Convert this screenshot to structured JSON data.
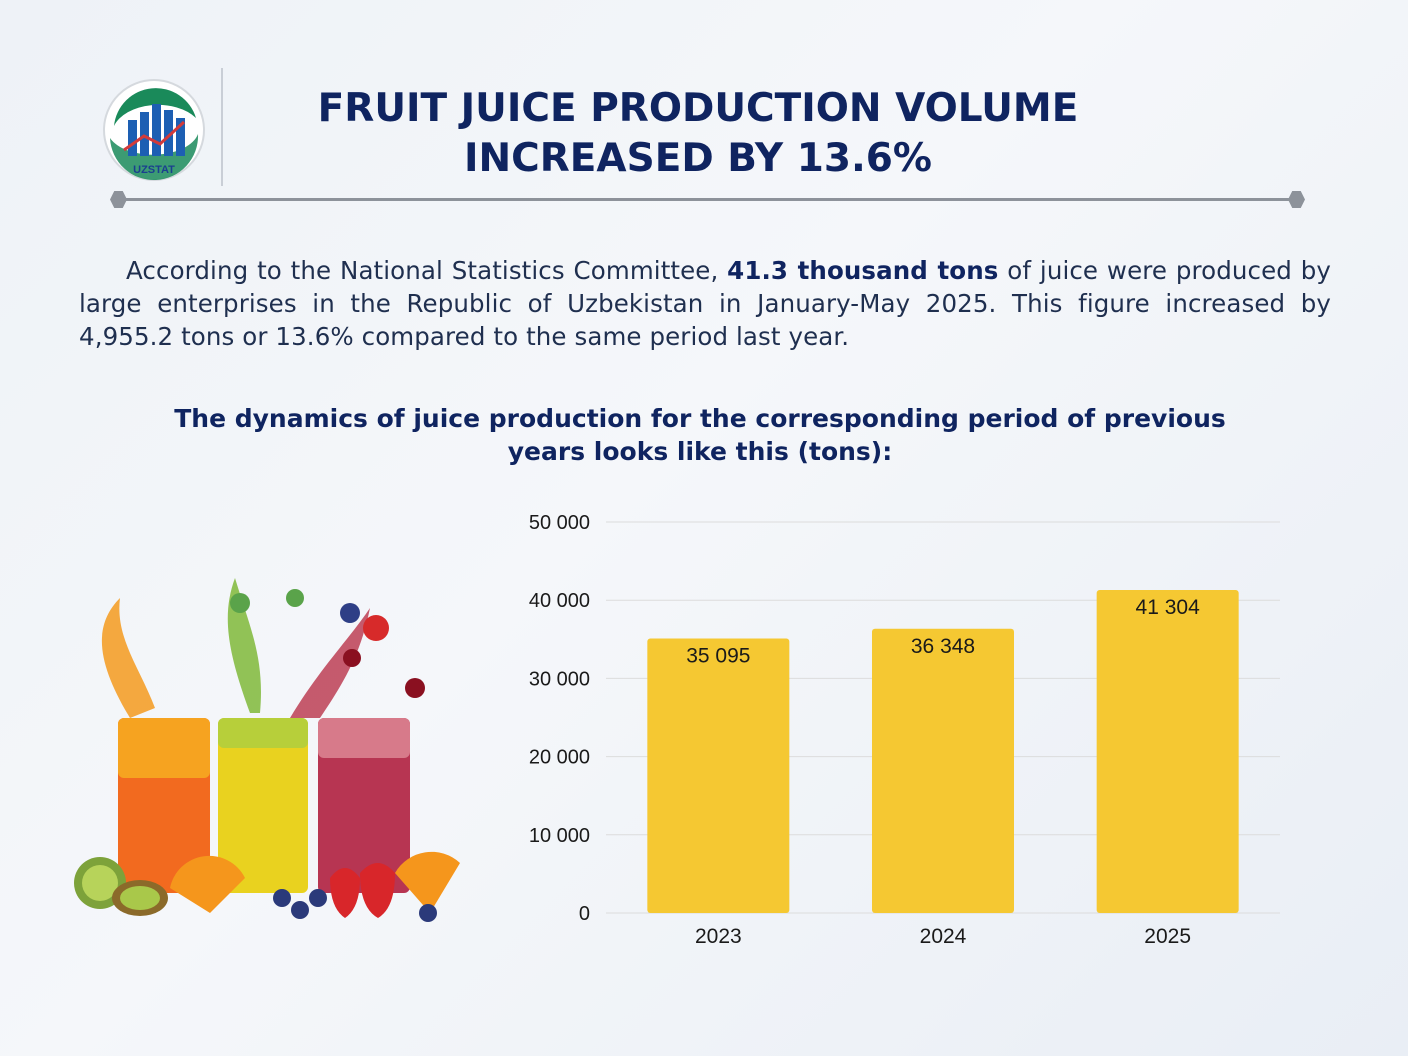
{
  "logo": {
    "text": "UZSTAT",
    "icon": "uzstat-logo-icon"
  },
  "header": {
    "title_line1": "FRUIT JUICE PRODUCTION VOLUME",
    "title_line2": "INCREASED BY 13.6%"
  },
  "intro": {
    "part1": "According to the National Statistics Committee, ",
    "bold": "41.3 thousand tons",
    "part2": " of juice were produced by large enterprises in the Republic of Uzbekistan in January-May 2025. This figure increased by 4,955.2 tons or 13.6% compared to the same period last year."
  },
  "subtitle": {
    "line1": "The dynamics of juice production for the corresponding period of previous",
    "line2": "years looks like this (tons):"
  },
  "illustration": {
    "icon": "juice-glasses-illustration"
  },
  "chart_data": {
    "type": "bar",
    "categories": [
      "2023",
      "2024",
      "2025"
    ],
    "values": [
      35095,
      36348,
      41304
    ],
    "value_labels": [
      "35 095",
      "36 348",
      "41 304"
    ],
    "yticks": [
      0,
      10000,
      20000,
      30000,
      40000,
      50000
    ],
    "ytick_labels": [
      "0",
      "10 000",
      "20 000",
      "30 000",
      "40 000",
      "50 000"
    ],
    "ylim": [
      0,
      50000
    ],
    "grid": true,
    "bar_color": "#f5c832",
    "grid_color": "#dcdcdc"
  },
  "colors": {
    "title": "#0f2460",
    "text": "#1f2f4f",
    "divider": "#8d929a"
  }
}
